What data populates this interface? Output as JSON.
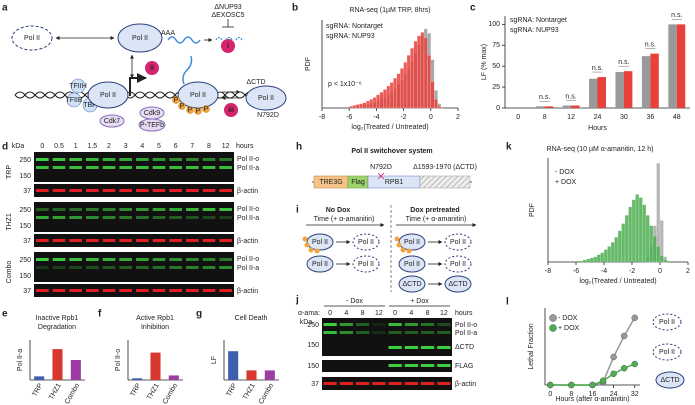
{
  "panel_labels": [
    "a",
    "b",
    "c",
    "d",
    "e",
    "f",
    "g",
    "h",
    "i",
    "j",
    "k",
    "l"
  ],
  "diagram_a": {
    "pol2": "Pol II",
    "i": "i",
    "ii": "ii",
    "iii": "iii",
    "knockouts": [
      "ΔNUP93",
      "ΔEXOSC5"
    ],
    "polya": "AAA",
    "factors": [
      "TFIIH",
      "TBP",
      "TFIIB"
    ],
    "phospho": "P",
    "cdk7": "Cdk7",
    "cdk9": "Cdk9",
    "ptefb": "P-TEFb",
    "dctd": "ΔCTD",
    "mutation": "N792D"
  },
  "blot_d": {
    "unit": "kDa",
    "lanes": [
      0,
      0.5,
      1,
      1.5,
      2,
      3,
      4,
      5,
      6,
      7,
      8,
      12
    ],
    "lane_unit": "hours",
    "treatments": [
      "TRP",
      "THZ1",
      "Combo"
    ],
    "treatment_colors": [
      "#3f5fae",
      "#d9382f",
      "#9c3da3"
    ],
    "markers": [
      250,
      150,
      37
    ],
    "bands": [
      "Pol II-o",
      "Pol II-a",
      "β-actin"
    ]
  },
  "diagram_h": {
    "title": "Pol II switchover system",
    "parts": [
      "TRE3G",
      "Flag",
      "RPB1"
    ],
    "mutation": "N792D",
    "deletion": "Δ1593-1970 (ΔCTD)"
  },
  "diagram_i": {
    "conditions": [
      "No Dox",
      "Dox pretreated"
    ],
    "time": "Time (+ α-amanitin)",
    "pol2": "Pol II",
    "dctd": "ΔCTD"
  },
  "blot_j": {
    "groups": [
      "- Dox",
      "+ Dox"
    ],
    "treatment": "α-ama:",
    "lanes": [
      0,
      4,
      8,
      12,
      0,
      4,
      8,
      12
    ],
    "lane_unit": "hours",
    "unit": "kDa",
    "markers": [
      250,
      150,
      150,
      37
    ],
    "bands": [
      "Pol II-o",
      "Pol II-a",
      "ΔCTD",
      "FLAG",
      "β-actin"
    ]
  },
  "chart_data": [
    {
      "type": "histogram",
      "title": "RNA-seq (1µM TRP, 8hrs)",
      "xlabel": "log₂(Treated / Untreated)",
      "ylabel": "PDF",
      "annotation": "p < 1x10⁻⁶",
      "bins": [
        -6,
        -5.75,
        -5.5,
        -5.25,
        -5,
        -4.75,
        -4.5,
        -4.25,
        -4,
        -3.75,
        -3.5,
        -3.25,
        -3,
        -2.75,
        -2.5,
        -2.25,
        -2,
        -1.75,
        -1.5,
        -1.25,
        -1,
        -0.75,
        -0.5,
        -0.25,
        0,
        0.25,
        0.5,
        0.75,
        1
      ],
      "series": [
        {
          "name": "sgRNA: Nontarget",
          "color": "#999999",
          "values": [
            0.01,
            0.01,
            0.02,
            0.02,
            0.03,
            0.04,
            0.05,
            0.06,
            0.08,
            0.1,
            0.12,
            0.15,
            0.18,
            0.22,
            0.27,
            0.32,
            0.38,
            0.45,
            0.53,
            0.62,
            0.72,
            0.82,
            0.9,
            0.85,
            0.55,
            0.2,
            0.05,
            0.01
          ]
        },
        {
          "name": "sgRNA: NUP93",
          "color": "#e8413c",
          "values": [
            0.02,
            0.03,
            0.04,
            0.05,
            0.06,
            0.08,
            0.1,
            0.12,
            0.15,
            0.18,
            0.21,
            0.25,
            0.29,
            0.34,
            0.39,
            0.45,
            0.52,
            0.6,
            0.68,
            0.76,
            0.82,
            0.86,
            0.8,
            0.6,
            0.3,
            0.1,
            0.02,
            0.01
          ]
        }
      ],
      "xlim": [
        -8,
        2
      ],
      "xticks": [
        -8,
        -6,
        -4,
        -2,
        0,
        2
      ],
      "ylim": [
        0,
        1
      ]
    },
    {
      "type": "bar",
      "xlabel": "Hours",
      "ylabel": "LF (% max)",
      "categories": [
        0,
        8,
        12,
        24,
        30,
        36,
        48
      ],
      "series": [
        {
          "name": "sgRNA: Nontarget",
          "color": "#999999",
          "values": [
            0,
            2,
            3,
            35,
            43,
            62,
            100
          ]
        },
        {
          "name": "sgRNA: NUP93",
          "color": "#e8413c",
          "values": [
            0,
            2,
            3,
            37,
            44,
            65,
            100
          ]
        }
      ],
      "annotations": [
        "n.s.",
        "n.s.",
        "n.s.",
        "n.s.",
        "n.s.",
        "n.s."
      ],
      "ylim": [
        0,
        110
      ],
      "yticks": [
        0,
        25,
        50,
        75,
        100
      ]
    },
    {
      "type": "bar",
      "title": [
        "Inactive Rpb1",
        "Degradation"
      ],
      "ylabel": "Pol II-a",
      "categories": [
        "TRP",
        "THZ1",
        "Combo"
      ],
      "values": [
        0.1,
        0.85,
        0.55
      ],
      "colors": [
        "#3f5fae",
        "#d9382f",
        "#9c3da3"
      ],
      "ylim": [
        0,
        1.1
      ]
    },
    {
      "type": "bar",
      "title": [
        "Active Rpb1",
        "Inhibition"
      ],
      "ylabel": "Pol II-o",
      "categories": [
        "TRP",
        "THZ1",
        "Combo"
      ],
      "values": [
        0.03,
        0.48,
        0.08
      ],
      "colors": [
        "#3f5fae",
        "#d9382f",
        "#9c3da3"
      ],
      "ylim": [
        0,
        0.7
      ]
    },
    {
      "type": "bar",
      "title": [
        "Cell Death"
      ],
      "ylabel": "LF",
      "categories": [
        "TRP",
        "THZ1",
        "Combo"
      ],
      "values": [
        0.36,
        0.12,
        0.12
      ],
      "colors": [
        "#3f5fae",
        "#d9382f",
        "#9c3da3"
      ],
      "ylim": [
        0,
        0.5
      ]
    },
    {
      "type": "histogram",
      "title": "RNA-seq (10 µM α-amanitin, 12 h)",
      "xlabel": "log₂(Treated / Untreated)",
      "ylabel": "PDF",
      "bins": [
        -6,
        -5.75,
        -5.5,
        -5.25,
        -5,
        -4.75,
        -4.5,
        -4.25,
        -4,
        -3.75,
        -3.5,
        -3.25,
        -3,
        -2.75,
        -2.5,
        -2.25,
        -2,
        -1.75,
        -1.5,
        -1.25,
        -1,
        -0.75,
        -0.5,
        -0.25,
        0,
        0.25,
        0.5,
        0.75,
        1
      ],
      "series": [
        {
          "name": "- DOX",
          "color": "#aaaaaa",
          "values": [
            0,
            0,
            0,
            0,
            0,
            0,
            0,
            0,
            0,
            0,
            0,
            0,
            0,
            0,
            0,
            0,
            0,
            0,
            0,
            0,
            0.05,
            0.15,
            0.35,
            0.95,
            0.4,
            0.05,
            0,
            0
          ]
        },
        {
          "name": "+ DOX",
          "color": "#4caf50",
          "values": [
            0.01,
            0.01,
            0.02,
            0.03,
            0.04,
            0.05,
            0.07,
            0.09,
            0.12,
            0.15,
            0.19,
            0.24,
            0.3,
            0.37,
            0.45,
            0.53,
            0.6,
            0.65,
            0.62,
            0.55,
            0.45,
            0.35,
            0.25,
            0.15,
            0.06,
            0.02,
            0.01,
            0
          ]
        }
      ],
      "xlim": [
        -8,
        2
      ],
      "xticks": [
        -8,
        -6,
        -4,
        -2,
        0,
        2
      ],
      "ylim": [
        0,
        1
      ]
    },
    {
      "type": "line",
      "xlabel": "Hours (after α-amanitin)",
      "ylabel": "Lethal Fraction",
      "x": [
        0,
        8,
        16,
        20,
        24,
        28,
        32
      ],
      "series": [
        {
          "name": "- DOX",
          "color": "#999999",
          "values": [
            0,
            0,
            0,
            0.02,
            0.2,
            0.35,
            0.48
          ]
        },
        {
          "name": "+ DOX",
          "color": "#4caf50",
          "values": [
            0,
            0,
            0,
            0.03,
            0.08,
            0.12,
            0.15
          ]
        }
      ],
      "annotations": [
        "Pol II",
        "Pol II",
        "ΔCTD"
      ],
      "xlim": [
        -2,
        34
      ],
      "xticks": [
        0,
        8,
        16,
        24,
        32
      ],
      "ylim": [
        0,
        0.55
      ]
    }
  ]
}
